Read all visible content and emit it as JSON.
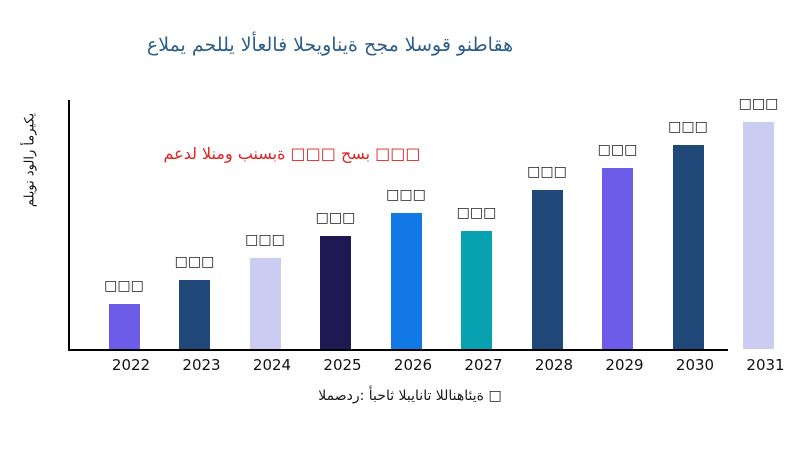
{
  "colors": {
    "background": "#ffffff",
    "title_text": "#2d5f8a",
    "annotation_text": "#e02222",
    "axis_line": "#000000",
    "tick_text": "#111111",
    "value_label_text": "#1a1a1a",
    "source_text": "#1a1a1a"
  },
  "chart_data": {
    "type": "bar",
    "title": "عالمي محللي الأعلاف الحيوانية حجم السوق ونطاقه",
    "ylabel": "مليون دولار أمريكي",
    "xlabel": "",
    "categories": [
      "2022",
      "2023",
      "2024",
      "2025",
      "2026",
      "2027",
      "2028",
      "2029",
      "2030",
      "2031"
    ],
    "values": [
      45,
      69,
      91,
      113,
      136,
      118,
      159,
      181,
      204,
      227
    ],
    "values_note": "chart shows no numeric axis and bar data labels render as missing-glyph boxes; values are relative bar heights in pixels",
    "value_labels": [
      "□□□",
      "□□□",
      "□□□",
      "□□□",
      "□□□",
      "□□□",
      "□□□",
      "□□□",
      "□□□",
      "□□□"
    ],
    "bar_colors": [
      "#6d5ce8",
      "#20497a",
      "#cacdf1",
      "#1f1853",
      "#1278e3",
      "#08a1b1",
      "#20497a",
      "#6d5ce8",
      "#20497a",
      "#cacdf1"
    ],
    "annotation": "معدل النمو بنسبة □□□ حسب □□□",
    "source": "المصدر: أبحاث البيانات اللانهائية □",
    "grid": false,
    "legend": false
  }
}
